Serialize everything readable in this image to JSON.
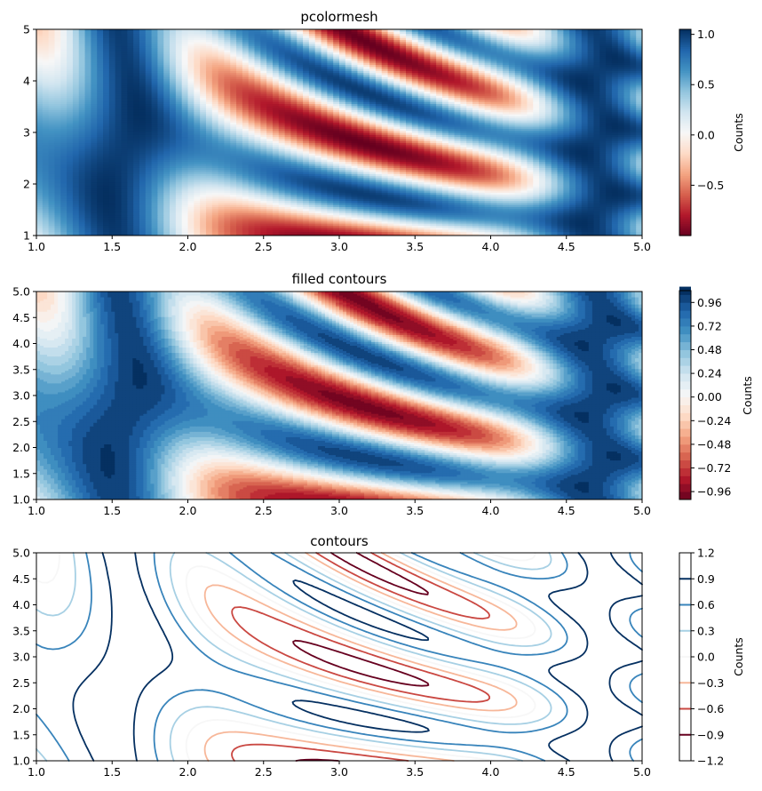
{
  "chart_data": [
    {
      "type": "heatmap",
      "title": "pcolormesh",
      "xlabel": "",
      "ylabel": "",
      "xlim": [
        1.0,
        5.0
      ],
      "ylim": [
        1.0,
        5.0
      ],
      "xticks": [
        "1.0",
        "1.5",
        "2.0",
        "2.5",
        "3.0",
        "3.5",
        "4.0",
        "4.5",
        "5.0"
      ],
      "yticks": [
        "1",
        "2",
        "3",
        "4",
        "5"
      ],
      "function": "sin(x)^10 + cos(10 + y*x) * cos(x)",
      "grid_resolution": 100,
      "colormap": "RdBu",
      "colorbar": {
        "label": "Counts",
        "range": [
          -1.0,
          1.05
        ],
        "ticks": [
          "−0.5",
          "0.0",
          "0.5",
          "1.0"
        ],
        "tick_values": [
          -0.5,
          0.0,
          0.5,
          1.0
        ]
      },
      "grid": false
    },
    {
      "type": "heatmap",
      "title": "filled contours",
      "xlabel": "",
      "ylabel": "",
      "xlim": [
        1.0,
        5.0
      ],
      "ylim": [
        1.0,
        5.0
      ],
      "xticks": [
        "1.0",
        "1.5",
        "2.0",
        "2.5",
        "3.0",
        "3.5",
        "4.0",
        "4.5",
        "5.0"
      ],
      "yticks": [
        "1.0",
        "1.5",
        "2.0",
        "2.5",
        "3.0",
        "3.5",
        "4.0",
        "4.5",
        "5.0"
      ],
      "function": "sin(x)^10 + cos(10 + y*x) * cos(x)",
      "colormap": "RdBu",
      "levels": [
        -1.04,
        1.08,
        0.08
      ],
      "colorbar": {
        "label": "Counts",
        "range": [
          -1.04,
          1.08
        ],
        "ticks": [
          "−0.96",
          "−0.72",
          "−0.48",
          "−0.24",
          "0.00",
          "0.24",
          "0.48",
          "0.72",
          "0.96"
        ],
        "tick_values": [
          -0.96,
          -0.72,
          -0.48,
          -0.24,
          0.0,
          0.24,
          0.48,
          0.72,
          0.96
        ]
      },
      "grid": false
    },
    {
      "type": "line",
      "title": "contours",
      "xlabel": "",
      "ylabel": "",
      "xlim": [
        1.0,
        5.0
      ],
      "ylim": [
        1.0,
        5.0
      ],
      "xticks": [
        "1.0",
        "1.5",
        "2.0",
        "2.5",
        "3.0",
        "3.5",
        "4.0",
        "4.5",
        "5.0"
      ],
      "yticks": [
        "1.0",
        "1.5",
        "2.0",
        "2.5",
        "3.0",
        "3.5",
        "4.0",
        "4.5",
        "5.0"
      ],
      "function": "sin(x)^10 + cos(10 + y*x) * cos(x)",
      "colormap": "RdBu",
      "levels": [
        -0.9,
        -0.6,
        -0.3,
        0.0,
        0.3,
        0.6,
        0.9
      ],
      "colorbar": {
        "label": "Counts",
        "range": [
          -1.2,
          1.2
        ],
        "ticks": [
          "−1.2",
          "−0.9",
          "−0.6",
          "−0.3",
          "0.0",
          "0.3",
          "0.6",
          "0.9",
          "1.2"
        ],
        "tick_values": [
          -1.2,
          -0.9,
          -0.6,
          -0.3,
          0.0,
          0.3,
          0.6,
          0.9,
          1.2
        ]
      },
      "grid": false
    }
  ]
}
